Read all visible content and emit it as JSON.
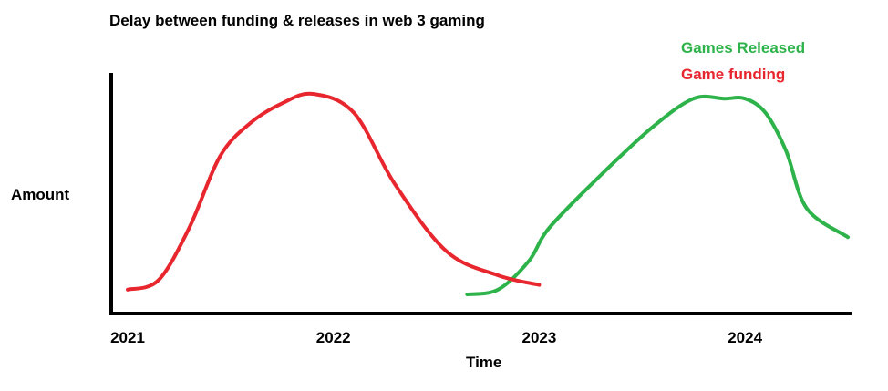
{
  "chart_data": {
    "type": "line",
    "title": "Delay between funding & releases in web 3 gaming",
    "xlabel": "Time",
    "ylabel": "Amount",
    "x_ticks": [
      "2021",
      "2022",
      "2023",
      "2024"
    ],
    "xlim": [
      2021,
      2024.5
    ],
    "ylim": [
      0,
      100
    ],
    "grid": false,
    "legend": "top-right",
    "series": [
      {
        "name": "Games Released",
        "color": "#2db34a",
        "x": [
          2022.65,
          2022.8,
          2022.95,
          2023.05,
          2023.3,
          2023.55,
          2023.75,
          2023.9,
          2024.0,
          2024.1,
          2024.2,
          2024.3,
          2024.5
        ],
        "y": [
          8,
          10,
          22,
          36,
          58,
          78,
          90,
          90,
          90,
          84,
          68,
          44,
          32
        ]
      },
      {
        "name": "Game funding",
        "color": "#e8262e",
        "x": [
          2021.0,
          2021.15,
          2021.3,
          2021.45,
          2021.6,
          2021.75,
          2021.9,
          2022.1,
          2022.3,
          2022.55,
          2022.8,
          2023.0
        ],
        "y": [
          10,
          14,
          36,
          66,
          80,
          88,
          92,
          84,
          54,
          26,
          16,
          12
        ]
      }
    ]
  }
}
